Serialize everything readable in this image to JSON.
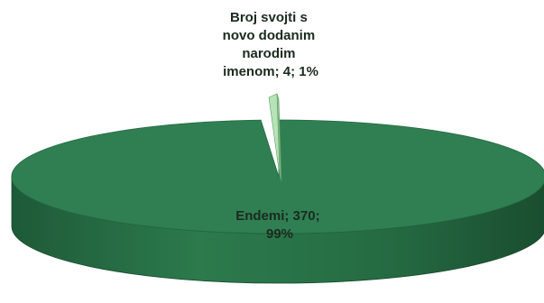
{
  "chart_data": {
    "type": "pie",
    "style": "3d-exploded",
    "slices": [
      {
        "label_lines": [
          "Endemi; 370;",
          "99%"
        ],
        "name": "Endemi",
        "value": 370,
        "percent": 99,
        "color": "#2f7f52"
      },
      {
        "label_lines": [
          "Broj svojti s",
          "novo dodanim",
          "narodim",
          "imenom; 4; 1%"
        ],
        "name": "Broj svojti s novo dodanim narodim imenom",
        "value": 4,
        "percent": 1,
        "color": "#b6e4b8"
      }
    ],
    "label_color": "#1b2a1f"
  }
}
